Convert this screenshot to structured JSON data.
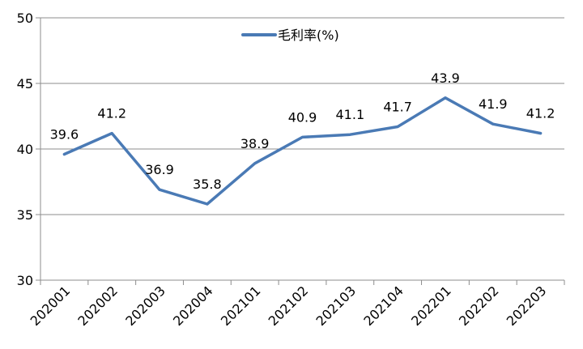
{
  "chart_data": {
    "type": "line",
    "categories": [
      "202001",
      "202002",
      "202003",
      "202004",
      "202101",
      "202102",
      "202103",
      "202104",
      "202201",
      "202202",
      "202203"
    ],
    "series": [
      {
        "name": "毛利率(%)",
        "values": [
          39.6,
          41.2,
          36.9,
          35.8,
          38.9,
          40.9,
          41.1,
          41.7,
          43.9,
          41.9,
          41.2
        ],
        "color": "#4a7ab5"
      }
    ],
    "ylim": [
      30,
      50
    ],
    "yticks": [
      30,
      35,
      40,
      45,
      50
    ],
    "grid": true,
    "legend": "top-center",
    "data_labels": [
      "39.6",
      "41.2",
      "36.9",
      "35.8",
      "38.9",
      "40.9",
      "41.1",
      "41.7",
      "43.9",
      "41.9",
      "41.2"
    ],
    "xlabel": "",
    "ylabel": ""
  },
  "colors": {
    "grid": "#8c8c8c",
    "axis": "#8c8c8c",
    "line": "#4a7ab5"
  }
}
